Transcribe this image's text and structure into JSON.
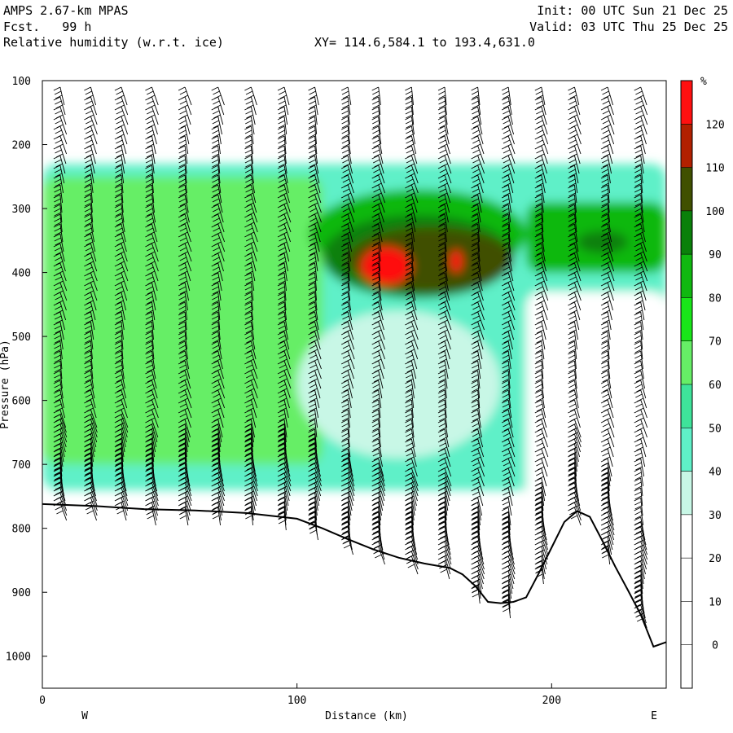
{
  "header": {
    "model": "AMPS 2.67-km MPAS",
    "forecast": "Fcst.   99 h",
    "field": "Relative humidity (w.r.t. ice)",
    "xy": "XY= 114.6,584.1 to 193.4,631.0",
    "init": "Init: 00 UTC Sun 21 Dec 25",
    "valid": "Valid: 03 UTC Thu 25 Dec 25"
  },
  "chart_data": {
    "type": "heatmap",
    "xlabel": "Distance (km)",
    "ylabel": "Pressure (hPa)",
    "xlim": [
      0,
      245
    ],
    "ylim": [
      1050,
      100
    ],
    "x_ticks": [
      0,
      100,
      200
    ],
    "y_ticks": [
      100,
      200,
      300,
      400,
      500,
      600,
      700,
      800,
      900,
      1000
    ],
    "x_end_labels": {
      "left": "W",
      "right": "E"
    },
    "colorbar": {
      "unit": "%",
      "tick_labels": [
        0,
        10,
        20,
        30,
        40,
        50,
        60,
        70,
        80,
        90,
        100,
        110,
        120
      ],
      "bins": [
        {
          "from": -10,
          "to": 30,
          "color": "#ffffff"
        },
        {
          "from": 30,
          "to": 40,
          "color": "#c8f7e6"
        },
        {
          "from": 40,
          "to": 50,
          "color": "#5ff0c8"
        },
        {
          "from": 50,
          "to": 60,
          "color": "#3ee39a"
        },
        {
          "from": 60,
          "to": 70,
          "color": "#66ee66"
        },
        {
          "from": 70,
          "to": 80,
          "color": "#19e619"
        },
        {
          "from": 80,
          "to": 90,
          "color": "#10b810"
        },
        {
          "from": 90,
          "to": 100,
          "color": "#0a800a"
        },
        {
          "from": 100,
          "to": 110,
          "color": "#405000"
        },
        {
          "from": 110,
          "to": 120,
          "color": "#b22000"
        },
        {
          "from": 120,
          "to": 130,
          "color": "#ff1010"
        }
      ]
    },
    "terrain_profile": [
      [
        0,
        762
      ],
      [
        20,
        765
      ],
      [
        40,
        770
      ],
      [
        60,
        772
      ],
      [
        80,
        776
      ],
      [
        100,
        785
      ],
      [
        110,
        800
      ],
      [
        120,
        817
      ],
      [
        130,
        833
      ],
      [
        140,
        846
      ],
      [
        150,
        855
      ],
      [
        160,
        862
      ],
      [
        165,
        872
      ],
      [
        170,
        890
      ],
      [
        175,
        915
      ],
      [
        180,
        917
      ],
      [
        185,
        915
      ],
      [
        190,
        908
      ],
      [
        195,
        870
      ],
      [
        200,
        830
      ],
      [
        205,
        790
      ],
      [
        210,
        773
      ],
      [
        215,
        782
      ],
      [
        220,
        820
      ],
      [
        225,
        860
      ],
      [
        230,
        897
      ],
      [
        235,
        935
      ],
      [
        240,
        985
      ],
      [
        245,
        978
      ]
    ],
    "wind_barb_columns_km": [
      7,
      19,
      31,
      43,
      56,
      69,
      82,
      95,
      107,
      120,
      132,
      145,
      158,
      171,
      183,
      196,
      209,
      222,
      235
    ],
    "humidity_regions": [
      {
        "x": [
          0,
          245
        ],
        "p": [
          230,
          740
        ],
        "rh": 45,
        "shape": "band"
      },
      {
        "x": [
          0,
          110
        ],
        "p": [
          250,
          700
        ],
        "rh": 65,
        "shape": "band"
      },
      {
        "x": [
          105,
          190
        ],
        "p": [
          270,
          410
        ],
        "rh": 80,
        "shape": "blob"
      },
      {
        "x": [
          110,
          185
        ],
        "p": [
          310,
          440
        ],
        "rh": 90,
        "shape": "blob"
      },
      {
        "x": [
          120,
          185
        ],
        "p": [
          330,
          430
        ],
        "rh": 105,
        "shape": "blob"
      },
      {
        "x": [
          125,
          145
        ],
        "p": [
          360,
          420
        ],
        "rh": 125,
        "shape": "blob"
      },
      {
        "x": [
          160,
          165
        ],
        "p": [
          365,
          400
        ],
        "rh": 125,
        "shape": "blob"
      },
      {
        "x": [
          190,
          245
        ],
        "p": [
          290,
          400
        ],
        "rh": 80,
        "shape": "band"
      },
      {
        "x": [
          210,
          230
        ],
        "p": [
          335,
          370
        ],
        "rh": 95,
        "shape": "blob"
      },
      {
        "x": [
          100,
          180
        ],
        "p": [
          460,
          690
        ],
        "rh": 35,
        "shape": "blob"
      },
      {
        "x": [
          190,
          245
        ],
        "p": [
          430,
          1000
        ],
        "rh": 20,
        "shape": "band"
      }
    ]
  }
}
